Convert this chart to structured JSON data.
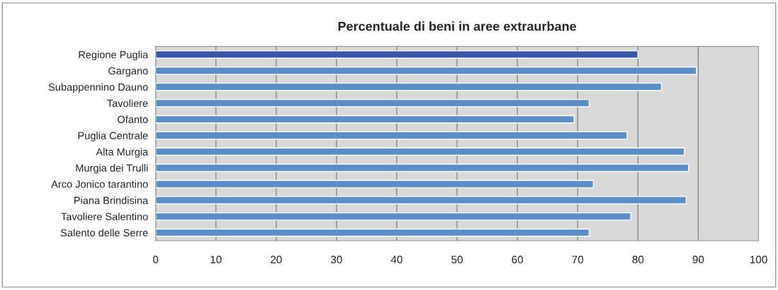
{
  "chart_data": {
    "type": "bar",
    "orientation": "horizontal",
    "title": "Percentuale di beni in aree extraurbane",
    "categories": [
      "Regione Puglia",
      "Gargano",
      "Subappennino Dauno",
      "Tavoliere",
      "Ofanto",
      "Puglia Centrale",
      "Alta Murgia",
      "Murgia dei Trulli",
      "Arco Jonico tarantino",
      "Piana Brindisina",
      "Tavoliere Salentino",
      "Salento delle Serre"
    ],
    "values": [
      80.0,
      89.7,
      83.9,
      71.9,
      69.4,
      78.2,
      87.7,
      88.4,
      72.6,
      88.0,
      78.8,
      71.9
    ],
    "colors": [
      "#3a56a8",
      "#5b8ec6",
      "#5b8ec6",
      "#5b8ec6",
      "#5b8ec6",
      "#5b8ec6",
      "#5b8ec6",
      "#5b8ec6",
      "#5b8ec6",
      "#5b8ec6",
      "#5b8ec6",
      "#5b8ec6"
    ],
    "xlim": [
      0,
      100
    ],
    "xticks": [
      0,
      10,
      20,
      30,
      40,
      50,
      60,
      70,
      80,
      90,
      100
    ],
    "grid": "x"
  }
}
